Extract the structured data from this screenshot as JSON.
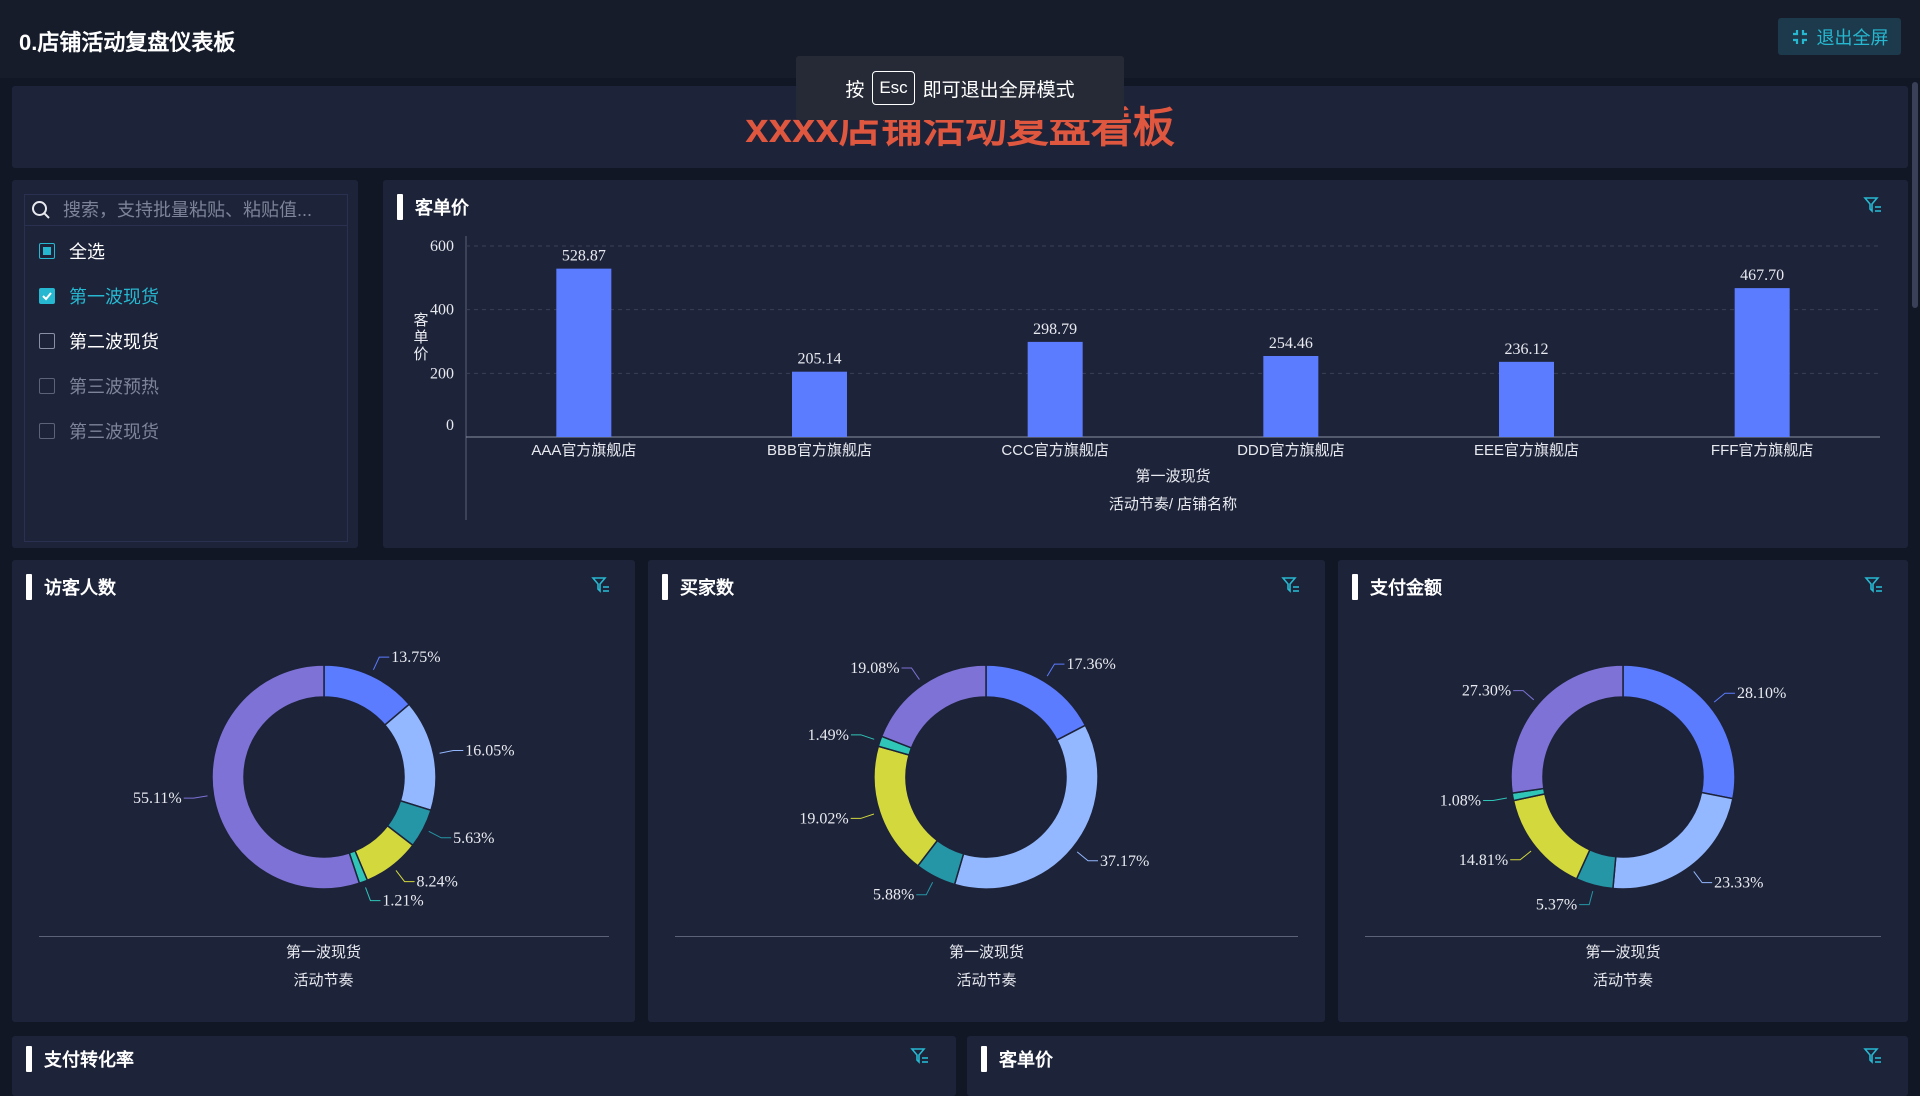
{
  "app": {
    "title": "0.店铺活动复盘仪表板",
    "exit_label": "退出全屏"
  },
  "toast": {
    "prefix": "按",
    "key": "Esc",
    "suffix": "即可退出全屏模式"
  },
  "banner": {
    "title": "xxxx店铺活动复盘看板"
  },
  "filter": {
    "placeholder": "搜索，支持批量粘贴、粘贴值...",
    "options": [
      {
        "label": "全选",
        "state": "partial"
      },
      {
        "label": "第一波现货",
        "state": "checked"
      },
      {
        "label": "第二波现货",
        "state": "unchecked"
      },
      {
        "label": "第三波预热",
        "state": "disabled"
      },
      {
        "label": "第三波现货",
        "state": "disabled"
      }
    ]
  },
  "panels": {
    "price": {
      "title": "客单价"
    },
    "visitors": {
      "title": "访客人数"
    },
    "buyers": {
      "title": "买家数"
    },
    "payment": {
      "title": "支付金额"
    },
    "conversion": {
      "title": "支付转化率"
    },
    "price2": {
      "title": "客单价"
    }
  },
  "colors": {
    "accent": "#26b8d0",
    "bar": "#5b7cff",
    "title_red": "#e0573f"
  },
  "chart_data": [
    {
      "type": "bar",
      "title": "客单价",
      "ylabel": "客单价",
      "xlabel": "活动节奏/ 店铺名称",
      "group_label": "第一波现货",
      "categories": [
        "AAA官方旗舰店",
        "BBB官方旗舰店",
        "CCC官方旗舰店",
        "DDD官方旗舰店",
        "EEE官方旗舰店",
        "FFF官方旗舰店"
      ],
      "values": [
        528.87,
        205.14,
        298.79,
        254.46,
        236.12,
        467.7
      ],
      "value_labels": [
        "528.87",
        "205.14",
        "298.79",
        "254.46",
        "236.12",
        "467.70"
      ],
      "yticks": [
        "0",
        "200",
        "400",
        "600"
      ],
      "ylim": [
        0,
        600
      ],
      "grid": true
    },
    {
      "type": "pie",
      "title": "访客人数",
      "subtitle": "第一波现货",
      "xlabel": "活动节奏",
      "slices": [
        13.75,
        16.05,
        5.63,
        8.24,
        1.21,
        55.11
      ],
      "labels": [
        "13.75%",
        "16.05%",
        "5.63%",
        "8.24%",
        "1.21%",
        "55.11%"
      ],
      "colors": [
        "#5b7cff",
        "#93b8ff",
        "#2596a6",
        "#d3d83c",
        "#2fc6b8",
        "#7e72d6"
      ]
    },
    {
      "type": "pie",
      "title": "买家数",
      "subtitle": "第一波现货",
      "xlabel": "活动节奏",
      "slices": [
        17.36,
        37.17,
        5.88,
        19.02,
        1.49,
        19.08
      ],
      "labels": [
        "17.36%",
        "37.17%",
        "5.88%",
        "19.02%",
        "1.49%",
        "19.08%"
      ],
      "colors": [
        "#5b7cff",
        "#93b8ff",
        "#2596a6",
        "#d3d83c",
        "#2fc6b8",
        "#7e72d6"
      ]
    },
    {
      "type": "pie",
      "title": "支付金额",
      "subtitle": "第一波现货",
      "xlabel": "活动节奏",
      "slices": [
        28.1,
        23.33,
        5.37,
        14.81,
        1.08,
        27.3
      ],
      "labels": [
        "28.10%",
        "23.33%",
        "5.37%",
        "14.81%",
        "1.08%",
        "27.30%"
      ],
      "colors": [
        "#5b7cff",
        "#93b8ff",
        "#2596a6",
        "#d3d83c",
        "#2fc6b8",
        "#7e72d6"
      ]
    }
  ]
}
